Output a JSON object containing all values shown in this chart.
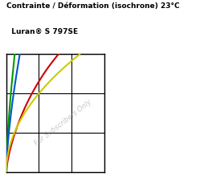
{
  "title_line1": "Contrainte / Déformation (isochrone) 23°C",
  "title_line2": "  Luran® S 797SE",
  "watermark": "For Subscribers Only",
  "background_color": "#ffffff",
  "plot_bg_color": "#ffffff",
  "grid_color": "#000000",
  "line_colors": [
    "#cc0000",
    "#009900",
    "#0055cc",
    "#cccc00"
  ],
  "xlim": [
    0,
    3
  ],
  "ylim": [
    0,
    3
  ],
  "figsize": [
    2.59,
    2.25
  ],
  "dpi": 100
}
